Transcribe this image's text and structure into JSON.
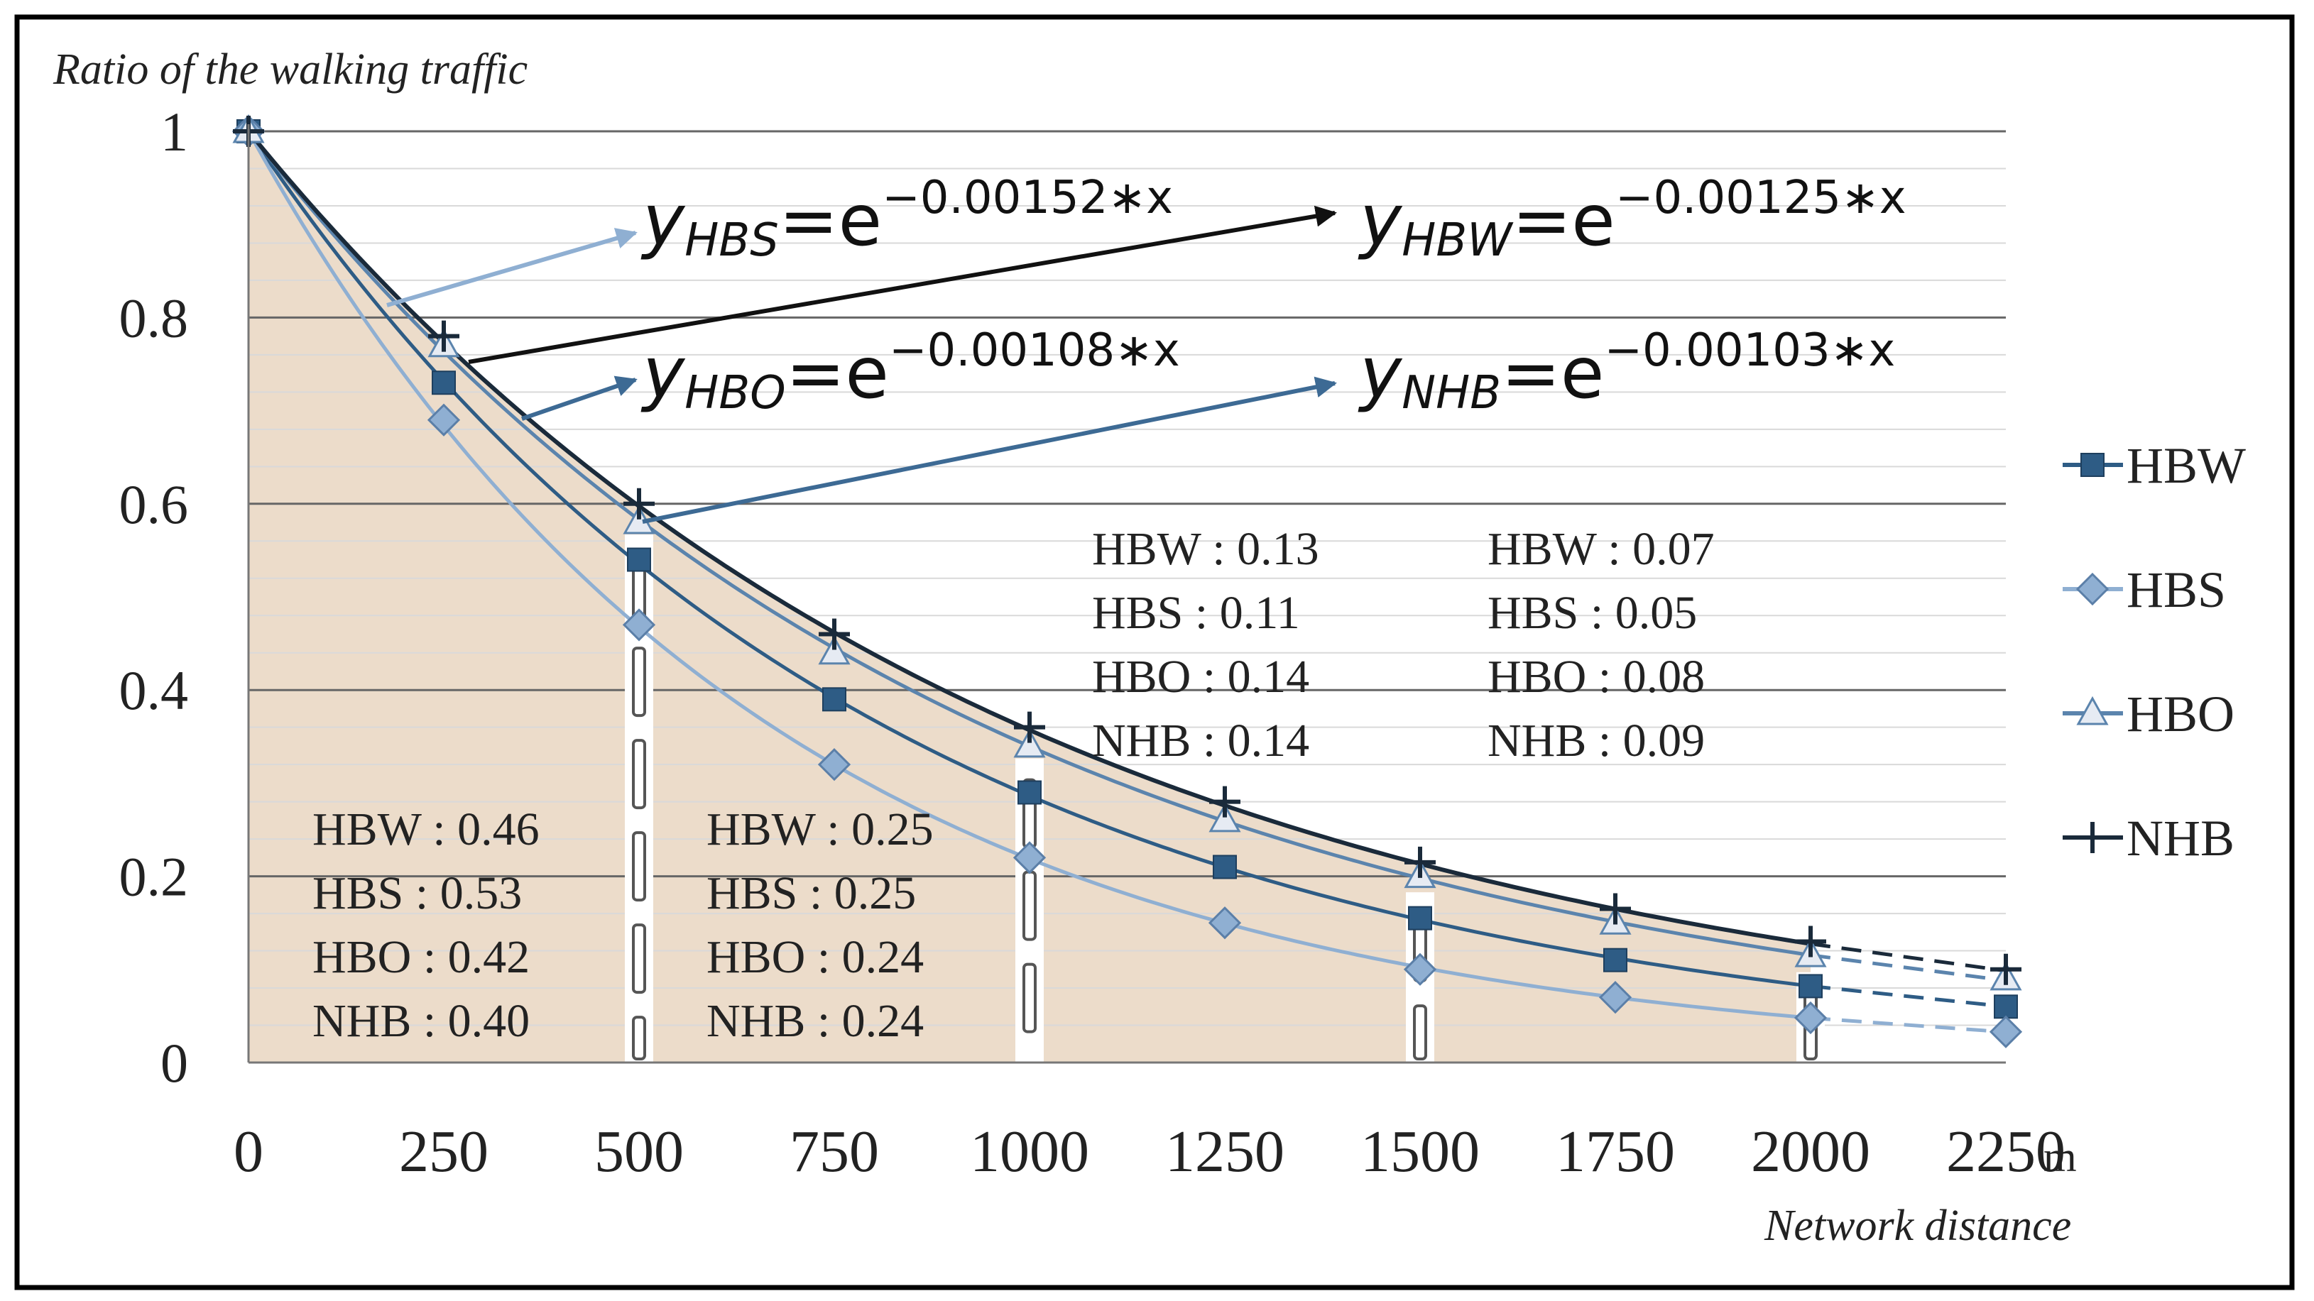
{
  "chart_data": {
    "type": "line",
    "ylabel": "Ratio of the walking traffic",
    "xlabel": "Network distance",
    "x_unit": "m",
    "x": [
      0,
      250,
      500,
      750,
      1000,
      1250,
      1500,
      1750,
      2000,
      2250
    ],
    "x_ticks": [
      "0",
      "250",
      "500",
      "750",
      "1000",
      "1250",
      "1500",
      "1750",
      "2000",
      "2250"
    ],
    "y_ticks": [
      "0",
      "0.2",
      "0.4",
      "0.6",
      "0.8",
      "1"
    ],
    "y_tick_values": [
      0,
      0.2,
      0.4,
      0.6,
      0.8,
      1
    ],
    "xlim": [
      0,
      2250
    ],
    "ylim": [
      0,
      1
    ],
    "grid": true,
    "legend_position": "right",
    "series": [
      {
        "name": "HBW",
        "marker": "square",
        "color": "#2e5c85",
        "coef": 0.00125,
        "values": [
          1.0,
          0.73,
          0.54,
          0.39,
          0.29,
          0.21,
          0.155,
          0.11,
          0.082,
          0.06
        ]
      },
      {
        "name": "HBS",
        "marker": "diamond",
        "color": "#8fafd2",
        "coef": 0.00152,
        "values": [
          1.0,
          0.69,
          0.47,
          0.32,
          0.22,
          0.15,
          0.1,
          0.07,
          0.048,
          0.033
        ]
      },
      {
        "name": "HBO",
        "marker": "triangle",
        "color": "#5b84ad",
        "coef": 0.00108,
        "values": [
          1.0,
          0.77,
          0.58,
          0.44,
          0.34,
          0.26,
          0.2,
          0.15,
          0.115,
          0.09
        ]
      },
      {
        "name": "NHB",
        "marker": "plus",
        "color": "#1a2a3a",
        "coef": 0.00103,
        "values": [
          1.0,
          0.78,
          0.6,
          0.46,
          0.36,
          0.28,
          0.215,
          0.165,
          0.13,
          0.1
        ]
      }
    ],
    "equations": [
      {
        "base": "y",
        "sub": "HBS",
        "rhs": "=e",
        "exp": "−0.00152∗x"
      },
      {
        "base": "y",
        "sub": "HBW",
        "rhs": "=e",
        "exp": "−0.00125∗x"
      },
      {
        "base": "y",
        "sub": "HBO",
        "rhs": "=e",
        "exp": "−0.00108∗x"
      },
      {
        "base": "y",
        "sub": "NHB",
        "rhs": "=e",
        "exp": "−0.00103∗x"
      }
    ],
    "annotations": [
      {
        "range": "0-500",
        "lines": [
          "HBW : 0.46",
          "HBS : 0.53",
          "HBO : 0.42",
          "NHB : 0.40"
        ]
      },
      {
        "range": "500-1000",
        "lines": [
          "HBW : 0.25",
          "HBS : 0.25",
          "HBO : 0.24",
          "NHB : 0.24"
        ]
      },
      {
        "range": "1000-1500",
        "lines": [
          "HBW : 0.13",
          "HBS : 0.11",
          "HBO : 0.14",
          "NHB : 0.14"
        ]
      },
      {
        "range": "1500-2000",
        "lines": [
          "HBW : 0.07",
          "HBS : 0.05",
          "HBO : 0.08",
          "NHB : 0.09"
        ]
      }
    ],
    "colors": {
      "area": "#ecdcca",
      "grid": "#666666",
      "minor_grid": "#d9d9d9"
    }
  }
}
